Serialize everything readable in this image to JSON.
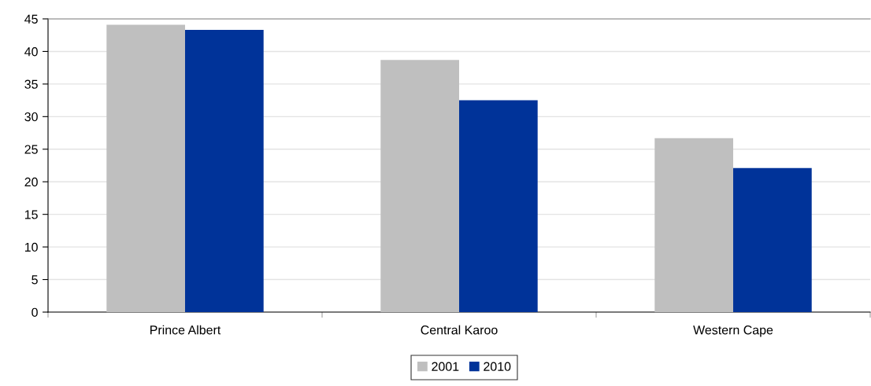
{
  "chart_data": {
    "type": "bar",
    "categories": [
      "Prince Albert",
      "Central Karoo",
      "Western Cape"
    ],
    "series": [
      {
        "name": "2001",
        "color": "#bfbfbf",
        "values": [
          44.1,
          38.7,
          26.7
        ]
      },
      {
        "name": "2010",
        "color": "#003399",
        "values": [
          43.3,
          32.5,
          22.1
        ]
      }
    ],
    "ylim": [
      0,
      45
    ],
    "yticks": [
      0,
      5,
      10,
      15,
      20,
      25,
      30,
      35,
      40,
      45
    ],
    "grid": "y",
    "legend": "bottom"
  }
}
